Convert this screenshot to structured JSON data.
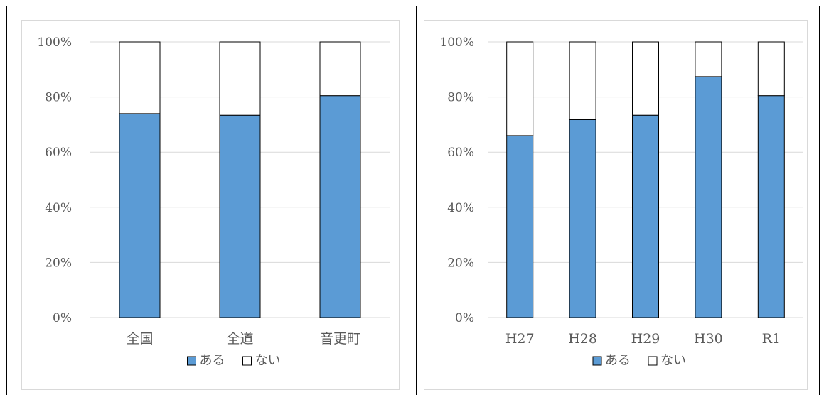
{
  "chart_data": [
    {
      "type": "bar",
      "stacked": true,
      "categories": [
        "全国",
        "全道",
        "音更町"
      ],
      "series": [
        {
          "name": "ある",
          "values": [
            74,
            73.4,
            80.5
          ],
          "color": "#5b9bd5"
        },
        {
          "name": "ない",
          "values": [
            26,
            26.6,
            19.5
          ],
          "color": "#ffffff"
        }
      ],
      "ylim": [
        0,
        100
      ],
      "yticks": [
        "0%",
        "20%",
        "40%",
        "60%",
        "80%",
        "100%"
      ],
      "grid": true,
      "legend": "bottom"
    },
    {
      "type": "bar",
      "stacked": true,
      "categories": [
        "H27",
        "H28",
        "H29",
        "H30",
        "R1"
      ],
      "series": [
        {
          "name": "ある",
          "values": [
            66,
            71.8,
            73.4,
            87.4,
            80.5
          ],
          "color": "#5b9bd5"
        },
        {
          "name": "ない",
          "values": [
            34,
            28.2,
            26.6,
            12.6,
            19.5
          ],
          "color": "#ffffff"
        }
      ],
      "ylim": [
        0,
        100
      ],
      "yticks": [
        "0%",
        "20%",
        "40%",
        "60%",
        "80%",
        "100%"
      ],
      "grid": true,
      "legend": "bottom"
    }
  ]
}
